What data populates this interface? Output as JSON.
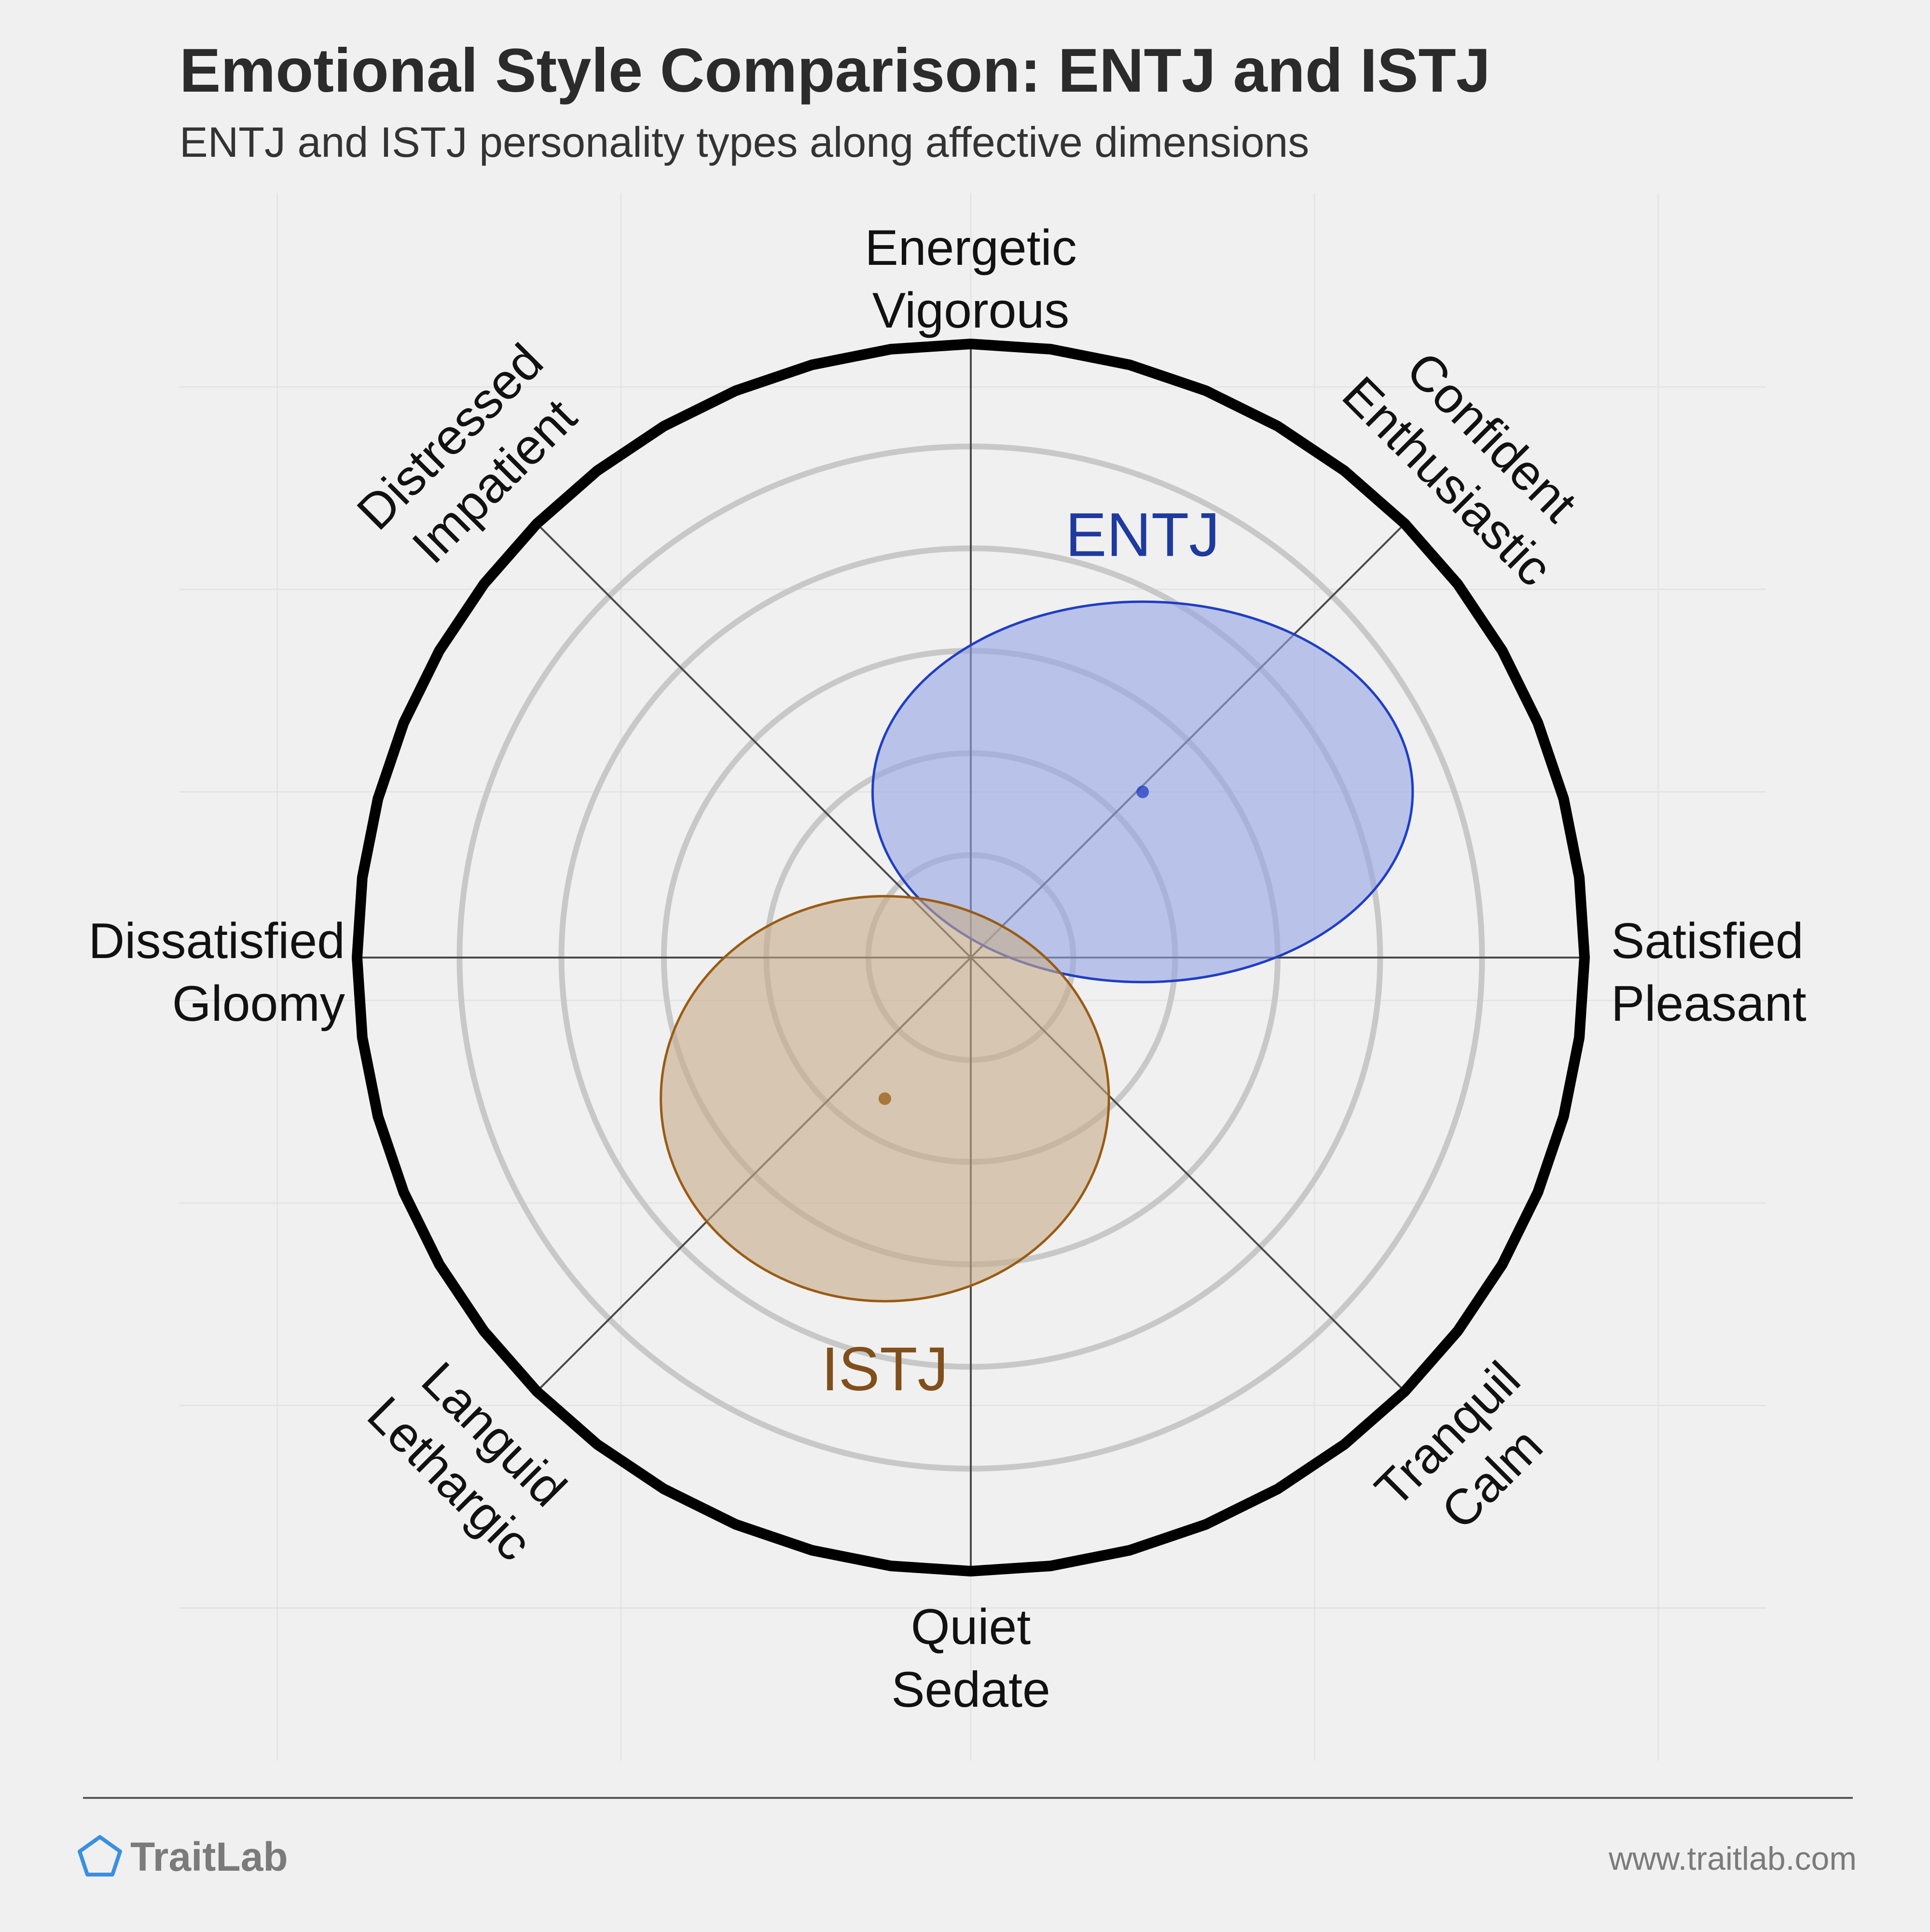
{
  "chart_data": {
    "type": "scatter",
    "title": "Emotional Style Comparison: ENTJ and ISTJ",
    "subtitle": "ENTJ and ISTJ personality types along affective dimensions",
    "axes": [
      {
        "angle": 90,
        "lines": [
          "Energetic",
          "Vigorous"
        ]
      },
      {
        "angle": 45,
        "lines": [
          "Confident",
          "Enthusiastic"
        ]
      },
      {
        "angle": 0,
        "lines": [
          "Satisfied",
          "Pleasant"
        ]
      },
      {
        "angle": -45,
        "lines": [
          "Tranquil",
          "Calm"
        ]
      },
      {
        "angle": -90,
        "lines": [
          "Quiet",
          "Sedate"
        ]
      },
      {
        "angle": -135,
        "lines": [
          "Languid",
          "Lethargic"
        ]
      },
      {
        "angle": 180,
        "lines": [
          "Dissatisfied",
          "Gloomy"
        ]
      },
      {
        "angle": 135,
        "lines": [
          "Distressed",
          "Impatient"
        ]
      }
    ],
    "rings": [
      0.167,
      0.333,
      0.5,
      0.667,
      0.833
    ],
    "series": [
      {
        "name": "ENTJ",
        "x": 0.28,
        "y": 0.27,
        "rx": 0.44,
        "ry": 0.31,
        "fill": "#95a3e2",
        "stroke": "#1f3ec4",
        "label_color": "#1f3a9e",
        "label_offset": [
          0,
          0.42
        ]
      },
      {
        "name": "ISTJ",
        "x": -0.14,
        "y": -0.23,
        "rx": 0.365,
        "ry": 0.33,
        "fill": "#c7ac88",
        "stroke": "#9a5b14",
        "label_color": "#804f1b",
        "label_offset": [
          0,
          -0.44
        ]
      }
    ]
  },
  "footer": {
    "brand": "TraitLab",
    "url": "www.traitlab.com"
  }
}
